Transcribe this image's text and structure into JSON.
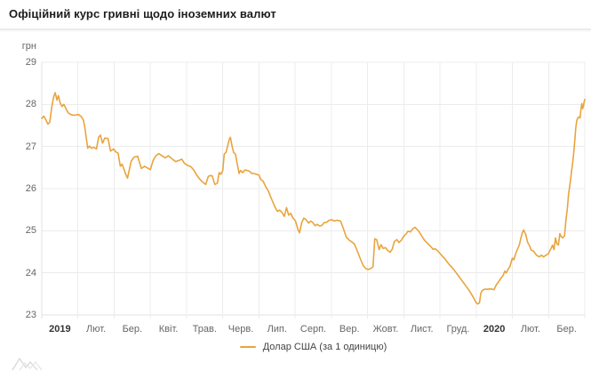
{
  "header": {
    "title": "Офіційний курс гривні щодо іноземних валют"
  },
  "colors": {
    "line": "#e9a43e",
    "grid": "#ececec",
    "axis": "#e2e2e2",
    "axis_text": "#666666",
    "year_text": "#333333",
    "title_text": "#1c1c1c",
    "watermark": "#d9d9d9"
  },
  "watermark_icon": "mountains-logo-icon",
  "chart_data": {
    "type": "line",
    "title": "Офіційний курс гривні щодо іноземних валют",
    "unit": "грн",
    "ylabel": "грн",
    "xlabel": "",
    "ylim": [
      23,
      29
    ],
    "yticks": [
      29,
      28,
      27,
      26,
      25,
      24,
      23
    ],
    "grid": true,
    "xlim_months": [
      0,
      15
    ],
    "xticks": [
      {
        "label": "2019",
        "bold": true
      },
      {
        "label": "Лют.",
        "bold": false
      },
      {
        "label": "Бер.",
        "bold": false
      },
      {
        "label": "Квіт.",
        "bold": false
      },
      {
        "label": "Трав.",
        "bold": false
      },
      {
        "label": "Черв.",
        "bold": false
      },
      {
        "label": "Лип.",
        "bold": false
      },
      {
        "label": "Серп.",
        "bold": false
      },
      {
        "label": "Вер.",
        "bold": false
      },
      {
        "label": "Жовт.",
        "bold": false
      },
      {
        "label": "Лист.",
        "bold": false
      },
      {
        "label": "Груд.",
        "bold": false
      },
      {
        "label": "2020",
        "bold": true
      },
      {
        "label": "Лют.",
        "bold": false
      },
      {
        "label": "Бер.",
        "bold": false
      }
    ],
    "legend": {
      "position": "bottom-center",
      "entries": [
        {
          "label": "Долар США (за 1 одиницю)",
          "color": "#e9a43e"
        }
      ]
    },
    "series": [
      {
        "name": "Долар США (за 1 одиницю)",
        "color": "#e9a43e",
        "x_unit": "months_since_2019_01",
        "points": [
          [
            0.0,
            27.67
          ],
          [
            0.06,
            27.72
          ],
          [
            0.12,
            27.62
          ],
          [
            0.17,
            27.53
          ],
          [
            0.22,
            27.58
          ],
          [
            0.28,
            27.96
          ],
          [
            0.33,
            28.18
          ],
          [
            0.37,
            28.28
          ],
          [
            0.42,
            28.1
          ],
          [
            0.46,
            28.21
          ],
          [
            0.51,
            28.03
          ],
          [
            0.56,
            27.95
          ],
          [
            0.61,
            28.0
          ],
          [
            0.67,
            27.9
          ],
          [
            0.73,
            27.8
          ],
          [
            0.8,
            27.76
          ],
          [
            0.88,
            27.74
          ],
          [
            0.95,
            27.75
          ],
          [
            1.02,
            27.76
          ],
          [
            1.09,
            27.71
          ],
          [
            1.15,
            27.63
          ],
          [
            1.19,
            27.45
          ],
          [
            1.23,
            27.2
          ],
          [
            1.27,
            26.96
          ],
          [
            1.32,
            27.01
          ],
          [
            1.37,
            26.96
          ],
          [
            1.44,
            26.98
          ],
          [
            1.51,
            26.94
          ],
          [
            1.57,
            27.22
          ],
          [
            1.62,
            27.27
          ],
          [
            1.68,
            27.08
          ],
          [
            1.74,
            27.2
          ],
          [
            1.83,
            27.19
          ],
          [
            1.9,
            26.89
          ],
          [
            1.98,
            26.94
          ],
          [
            2.05,
            26.87
          ],
          [
            2.11,
            26.84
          ],
          [
            2.17,
            26.53
          ],
          [
            2.22,
            26.58
          ],
          [
            2.32,
            26.34
          ],
          [
            2.37,
            26.25
          ],
          [
            2.47,
            26.65
          ],
          [
            2.55,
            26.75
          ],
          [
            2.65,
            26.77
          ],
          [
            2.75,
            26.48
          ],
          [
            2.84,
            26.53
          ],
          [
            2.92,
            26.49
          ],
          [
            3.0,
            26.45
          ],
          [
            3.07,
            26.66
          ],
          [
            3.15,
            26.78
          ],
          [
            3.23,
            26.83
          ],
          [
            3.32,
            26.78
          ],
          [
            3.41,
            26.73
          ],
          [
            3.5,
            26.78
          ],
          [
            3.62,
            26.69
          ],
          [
            3.7,
            26.64
          ],
          [
            3.79,
            26.67
          ],
          [
            3.87,
            26.7
          ],
          [
            3.94,
            26.6
          ],
          [
            4.03,
            26.55
          ],
          [
            4.12,
            26.52
          ],
          [
            4.2,
            26.44
          ],
          [
            4.28,
            26.32
          ],
          [
            4.37,
            26.22
          ],
          [
            4.45,
            26.15
          ],
          [
            4.53,
            26.1
          ],
          [
            4.6,
            26.29
          ],
          [
            4.66,
            26.31
          ],
          [
            4.71,
            26.3
          ],
          [
            4.78,
            26.1
          ],
          [
            4.85,
            26.13
          ],
          [
            4.9,
            26.38
          ],
          [
            4.95,
            26.34
          ],
          [
            5.0,
            26.43
          ],
          [
            5.04,
            26.82
          ],
          [
            5.09,
            26.86
          ],
          [
            5.18,
            27.17
          ],
          [
            5.21,
            27.22
          ],
          [
            5.26,
            26.99
          ],
          [
            5.3,
            26.86
          ],
          [
            5.35,
            26.82
          ],
          [
            5.41,
            26.54
          ],
          [
            5.45,
            26.36
          ],
          [
            5.49,
            26.43
          ],
          [
            5.55,
            26.38
          ],
          [
            5.61,
            26.44
          ],
          [
            5.68,
            26.43
          ],
          [
            5.74,
            26.41
          ],
          [
            5.8,
            26.36
          ],
          [
            5.86,
            26.36
          ],
          [
            5.93,
            26.34
          ],
          [
            6.0,
            26.32
          ],
          [
            6.05,
            26.22
          ],
          [
            6.12,
            26.17
          ],
          [
            6.19,
            26.04
          ],
          [
            6.26,
            25.94
          ],
          [
            6.33,
            25.79
          ],
          [
            6.4,
            25.65
          ],
          [
            6.45,
            25.55
          ],
          [
            6.51,
            25.46
          ],
          [
            6.57,
            25.49
          ],
          [
            6.63,
            25.44
          ],
          [
            6.7,
            25.34
          ],
          [
            6.76,
            25.55
          ],
          [
            6.82,
            25.37
          ],
          [
            6.88,
            25.41
          ],
          [
            6.94,
            25.3
          ],
          [
            7.01,
            25.23
          ],
          [
            7.08,
            25.02
          ],
          [
            7.12,
            24.95
          ],
          [
            7.18,
            25.19
          ],
          [
            7.24,
            25.3
          ],
          [
            7.3,
            25.26
          ],
          [
            7.37,
            25.18
          ],
          [
            7.43,
            25.23
          ],
          [
            7.49,
            25.19
          ],
          [
            7.55,
            25.12
          ],
          [
            7.61,
            25.15
          ],
          [
            7.68,
            25.11
          ],
          [
            7.74,
            25.13
          ],
          [
            7.8,
            25.19
          ],
          [
            7.87,
            25.2
          ],
          [
            7.94,
            25.25
          ],
          [
            8.01,
            25.26
          ],
          [
            8.08,
            25.23
          ],
          [
            8.15,
            25.25
          ],
          [
            8.25,
            25.23
          ],
          [
            8.32,
            25.08
          ],
          [
            8.41,
            24.85
          ],
          [
            8.5,
            24.77
          ],
          [
            8.57,
            24.73
          ],
          [
            8.64,
            24.68
          ],
          [
            8.73,
            24.49
          ],
          [
            8.81,
            24.31
          ],
          [
            8.88,
            24.17
          ],
          [
            8.95,
            24.1
          ],
          [
            9.02,
            24.08
          ],
          [
            9.08,
            24.1
          ],
          [
            9.15,
            24.14
          ],
          [
            9.2,
            24.81
          ],
          [
            9.25,
            24.79
          ],
          [
            9.32,
            24.55
          ],
          [
            9.37,
            24.67
          ],
          [
            9.43,
            24.58
          ],
          [
            9.49,
            24.6
          ],
          [
            9.56,
            24.53
          ],
          [
            9.62,
            24.49
          ],
          [
            9.68,
            24.56
          ],
          [
            9.74,
            24.74
          ],
          [
            9.81,
            24.79
          ],
          [
            9.87,
            24.72
          ],
          [
            9.93,
            24.77
          ],
          [
            10.0,
            24.87
          ],
          [
            10.06,
            24.92
          ],
          [
            10.12,
            24.99
          ],
          [
            10.18,
            24.97
          ],
          [
            10.25,
            25.05
          ],
          [
            10.31,
            25.08
          ],
          [
            10.37,
            25.03
          ],
          [
            10.43,
            24.97
          ],
          [
            10.5,
            24.87
          ],
          [
            10.56,
            24.79
          ],
          [
            10.62,
            24.73
          ],
          [
            10.68,
            24.68
          ],
          [
            10.75,
            24.62
          ],
          [
            10.81,
            24.56
          ],
          [
            10.87,
            24.57
          ],
          [
            10.93,
            24.53
          ],
          [
            11.0,
            24.46
          ],
          [
            11.07,
            24.39
          ],
          [
            11.13,
            24.34
          ],
          [
            11.19,
            24.27
          ],
          [
            11.25,
            24.2
          ],
          [
            11.32,
            24.14
          ],
          [
            11.38,
            24.08
          ],
          [
            11.44,
            24.01
          ],
          [
            11.5,
            23.94
          ],
          [
            11.56,
            23.87
          ],
          [
            11.62,
            23.8
          ],
          [
            11.68,
            23.73
          ],
          [
            11.74,
            23.66
          ],
          [
            11.8,
            23.59
          ],
          [
            11.85,
            23.52
          ],
          [
            11.9,
            23.45
          ],
          [
            11.95,
            23.37
          ],
          [
            12.0,
            23.29
          ],
          [
            12.04,
            23.26
          ],
          [
            12.09,
            23.29
          ],
          [
            12.13,
            23.52
          ],
          [
            12.17,
            23.58
          ],
          [
            12.23,
            23.61
          ],
          [
            12.31,
            23.61
          ],
          [
            12.4,
            23.62
          ],
          [
            12.49,
            23.6
          ],
          [
            12.56,
            23.72
          ],
          [
            12.62,
            23.79
          ],
          [
            12.68,
            23.87
          ],
          [
            12.74,
            23.93
          ],
          [
            12.79,
            24.04
          ],
          [
            12.83,
            24.0
          ],
          [
            12.88,
            24.08
          ],
          [
            12.93,
            24.15
          ],
          [
            13.0,
            24.35
          ],
          [
            13.04,
            24.31
          ],
          [
            13.09,
            24.45
          ],
          [
            13.14,
            24.56
          ],
          [
            13.19,
            24.66
          ],
          [
            13.24,
            24.84
          ],
          [
            13.28,
            24.96
          ],
          [
            13.31,
            25.02
          ],
          [
            13.37,
            24.91
          ],
          [
            13.42,
            24.73
          ],
          [
            13.48,
            24.63
          ],
          [
            13.52,
            24.54
          ],
          [
            13.58,
            24.52
          ],
          [
            13.64,
            24.45
          ],
          [
            13.68,
            24.41
          ],
          [
            13.75,
            24.38
          ],
          [
            13.8,
            24.42
          ],
          [
            13.86,
            24.38
          ],
          [
            13.93,
            24.42
          ],
          [
            13.99,
            24.45
          ],
          [
            14.03,
            24.52
          ],
          [
            14.07,
            24.58
          ],
          [
            14.11,
            24.66
          ],
          [
            14.15,
            24.55
          ],
          [
            14.19,
            24.83
          ],
          [
            14.23,
            24.69
          ],
          [
            14.27,
            24.66
          ],
          [
            14.31,
            24.93
          ],
          [
            14.35,
            24.86
          ],
          [
            14.39,
            24.83
          ],
          [
            14.44,
            24.88
          ],
          [
            14.48,
            25.25
          ],
          [
            14.52,
            25.53
          ],
          [
            14.55,
            25.85
          ],
          [
            14.6,
            26.16
          ],
          [
            14.64,
            26.44
          ],
          [
            14.68,
            26.72
          ],
          [
            14.72,
            27.1
          ],
          [
            14.75,
            27.43
          ],
          [
            14.78,
            27.62
          ],
          [
            14.81,
            27.68
          ],
          [
            14.84,
            27.7
          ],
          [
            14.87,
            27.68
          ],
          [
            14.9,
            27.92
          ],
          [
            14.92,
            28.02
          ],
          [
            14.94,
            27.9
          ],
          [
            14.96,
            27.95
          ],
          [
            14.98,
            28.05
          ],
          [
            15.0,
            28.12
          ]
        ]
      }
    ]
  }
}
